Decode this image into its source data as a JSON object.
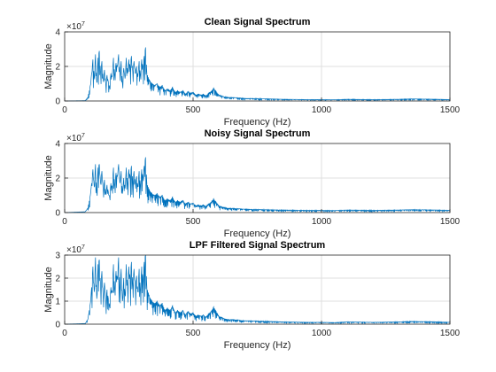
{
  "chart_data": [
    {
      "type": "line",
      "title": "Clean Signal Spectrum",
      "xlabel": "Frequency (Hz)",
      "ylabel": "Magnitude",
      "xlim": [
        0,
        1500
      ],
      "ylim": [
        0,
        4
      ],
      "xticks": [
        "0",
        "500",
        "1000",
        "1500"
      ],
      "yticks": [
        "0",
        "2",
        "4"
      ],
      "y_exponent_label": "×10",
      "y_exponent": "7",
      "grid": true,
      "series": [
        {
          "color": "#0072BD",
          "x": [
            0,
            80,
            90,
            100,
            105,
            110,
            115,
            120,
            125,
            130,
            135,
            140,
            145,
            150,
            155,
            160,
            165,
            170,
            175,
            180,
            185,
            190,
            195,
            200,
            205,
            210,
            215,
            220,
            225,
            230,
            235,
            240,
            245,
            250,
            255,
            260,
            265,
            270,
            275,
            280,
            285,
            290,
            295,
            300,
            305,
            310,
            315,
            320,
            330,
            340,
            350,
            360,
            370,
            380,
            390,
            400,
            410,
            420,
            430,
            440,
            450,
            460,
            470,
            480,
            490,
            500,
            510,
            520,
            530,
            540,
            550,
            560,
            570,
            580,
            590,
            600,
            610,
            620,
            640,
            660,
            680,
            700,
            750,
            800,
            850,
            900,
            950,
            1000,
            1050,
            1100,
            1150,
            1200,
            1250,
            1300,
            1350,
            1400,
            1450,
            1500
          ],
          "y": [
            0.0,
            0.02,
            0.2,
            0.9,
            1.6,
            2.4,
            1.4,
            2.7,
            1.1,
            2.5,
            2.9,
            1.6,
            2.3,
            1.2,
            1.8,
            1.0,
            1.5,
            1.1,
            0.8,
            1.6,
            1.4,
            2.5,
            1.5,
            2.2,
            2.0,
            2.7,
            1.6,
            2.3,
            1.0,
            1.9,
            1.3,
            2.5,
            1.6,
            2.4,
            2.0,
            2.6,
            1.7,
            2.3,
            1.6,
            2.0,
            1.4,
            2.3,
            1.5,
            2.4,
            2.0,
            2.6,
            3.1,
            1.6,
            1.2,
            1.0,
            0.9,
            1.0,
            0.8,
            0.9,
            0.6,
            0.7,
            0.6,
            0.8,
            0.5,
            0.6,
            0.5,
            0.6,
            0.4,
            0.55,
            0.45,
            0.5,
            0.35,
            0.4,
            0.35,
            0.4,
            0.3,
            0.45,
            0.55,
            0.75,
            0.55,
            0.35,
            0.3,
            0.25,
            0.2,
            0.2,
            0.18,
            0.15,
            0.14,
            0.12,
            0.1,
            0.09,
            0.08,
            0.08,
            0.07,
            0.1,
            0.09,
            0.08,
            0.09,
            0.1,
            0.12,
            0.11,
            0.1,
            0.08
          ]
        }
      ]
    },
    {
      "type": "line",
      "title": "Noisy Signal Spectrum",
      "xlabel": "Frequency (Hz)",
      "ylabel": "Magnitude",
      "xlim": [
        0,
        1500
      ],
      "ylim": [
        0,
        4
      ],
      "xticks": [
        "0",
        "500",
        "1000",
        "1500"
      ],
      "yticks": [
        "0",
        "2",
        "4"
      ],
      "y_exponent_label": "×10",
      "y_exponent": "7",
      "grid": true,
      "series": [
        {
          "color": "#0072BD",
          "x": [
            0,
            80,
            90,
            100,
            105,
            110,
            115,
            120,
            125,
            130,
            135,
            140,
            145,
            150,
            155,
            160,
            165,
            170,
            175,
            180,
            185,
            190,
            195,
            200,
            205,
            210,
            215,
            220,
            225,
            230,
            235,
            240,
            245,
            250,
            255,
            260,
            265,
            270,
            275,
            280,
            285,
            290,
            295,
            300,
            305,
            310,
            315,
            320,
            330,
            340,
            350,
            360,
            370,
            380,
            390,
            400,
            410,
            420,
            430,
            440,
            450,
            460,
            470,
            480,
            490,
            500,
            510,
            520,
            530,
            540,
            550,
            560,
            570,
            580,
            590,
            600,
            610,
            620,
            640,
            660,
            680,
            700,
            750,
            800,
            850,
            900,
            950,
            1000,
            1050,
            1100,
            1150,
            1200,
            1250,
            1300,
            1350,
            1400,
            1450,
            1500
          ],
          "y": [
            0.0,
            0.05,
            0.25,
            1.0,
            1.7,
            2.5,
            1.5,
            2.8,
            1.2,
            2.6,
            2.8,
            1.7,
            2.4,
            1.3,
            1.9,
            1.1,
            1.6,
            1.2,
            0.9,
            1.7,
            1.5,
            2.6,
            1.6,
            2.3,
            2.1,
            2.8,
            1.7,
            2.4,
            1.1,
            2.0,
            1.4,
            2.6,
            1.7,
            2.5,
            2.1,
            2.7,
            1.8,
            2.4,
            1.7,
            2.1,
            1.5,
            2.4,
            1.6,
            2.5,
            2.1,
            2.7,
            3.2,
            1.7,
            1.3,
            1.1,
            1.0,
            1.1,
            0.9,
            1.0,
            0.7,
            0.8,
            0.7,
            0.9,
            0.6,
            0.7,
            0.6,
            0.7,
            0.5,
            0.6,
            0.5,
            0.55,
            0.4,
            0.45,
            0.4,
            0.45,
            0.35,
            0.5,
            0.6,
            0.8,
            0.6,
            0.4,
            0.35,
            0.3,
            0.25,
            0.25,
            0.22,
            0.2,
            0.18,
            0.16,
            0.15,
            0.14,
            0.13,
            0.13,
            0.12,
            0.15,
            0.14,
            0.13,
            0.14,
            0.15,
            0.17,
            0.16,
            0.15,
            0.13
          ]
        }
      ]
    },
    {
      "type": "line",
      "title": "LPF Filtered Signal Spectrum",
      "xlabel": "Frequency (Hz)",
      "ylabel": "Magnitude",
      "xlim": [
        0,
        1500
      ],
      "ylim": [
        0,
        3
      ],
      "xticks": [
        "0",
        "500",
        "1000",
        "1500"
      ],
      "yticks": [
        "0",
        "1",
        "2",
        "3"
      ],
      "y_exponent_label": "×10",
      "y_exponent": "7",
      "grid": true,
      "series": [
        {
          "color": "#0072BD",
          "x": [
            0,
            80,
            90,
            100,
            105,
            110,
            115,
            120,
            125,
            130,
            135,
            140,
            145,
            150,
            155,
            160,
            165,
            170,
            175,
            180,
            185,
            190,
            195,
            200,
            205,
            210,
            215,
            220,
            225,
            230,
            235,
            240,
            245,
            250,
            255,
            260,
            265,
            270,
            275,
            280,
            285,
            290,
            295,
            300,
            305,
            310,
            315,
            320,
            330,
            340,
            350,
            360,
            370,
            380,
            390,
            400,
            410,
            420,
            430,
            440,
            450,
            460,
            470,
            480,
            490,
            500,
            510,
            520,
            530,
            540,
            550,
            560,
            570,
            580,
            590,
            600,
            610,
            620,
            640,
            660,
            680,
            700,
            750,
            800,
            850,
            900,
            950,
            1000,
            1050,
            1100,
            1150,
            1200,
            1250,
            1300,
            1350,
            1400,
            1450,
            1500
          ],
          "y": [
            0.0,
            0.03,
            0.2,
            0.9,
            1.6,
            2.5,
            1.4,
            2.9,
            1.1,
            2.6,
            2.8,
            1.6,
            2.3,
            1.2,
            1.8,
            1.0,
            1.5,
            1.1,
            0.8,
            1.6,
            1.4,
            2.6,
            1.5,
            2.3,
            2.0,
            2.9,
            1.6,
            2.4,
            1.0,
            2.0,
            1.3,
            2.6,
            1.6,
            2.5,
            2.0,
            2.7,
            1.7,
            2.4,
            1.6,
            2.1,
            1.4,
            2.4,
            1.5,
            2.5,
            2.0,
            2.7,
            3.05,
            1.6,
            1.2,
            1.0,
            0.9,
            1.0,
            0.8,
            0.9,
            0.6,
            0.7,
            0.6,
            0.8,
            0.5,
            0.6,
            0.5,
            0.6,
            0.4,
            0.55,
            0.45,
            0.5,
            0.35,
            0.4,
            0.35,
            0.4,
            0.3,
            0.45,
            0.55,
            0.75,
            0.55,
            0.35,
            0.3,
            0.25,
            0.2,
            0.2,
            0.18,
            0.15,
            0.14,
            0.12,
            0.1,
            0.09,
            0.08,
            0.08,
            0.07,
            0.1,
            0.09,
            0.08,
            0.09,
            0.1,
            0.12,
            0.11,
            0.1,
            0.08
          ]
        }
      ]
    }
  ]
}
